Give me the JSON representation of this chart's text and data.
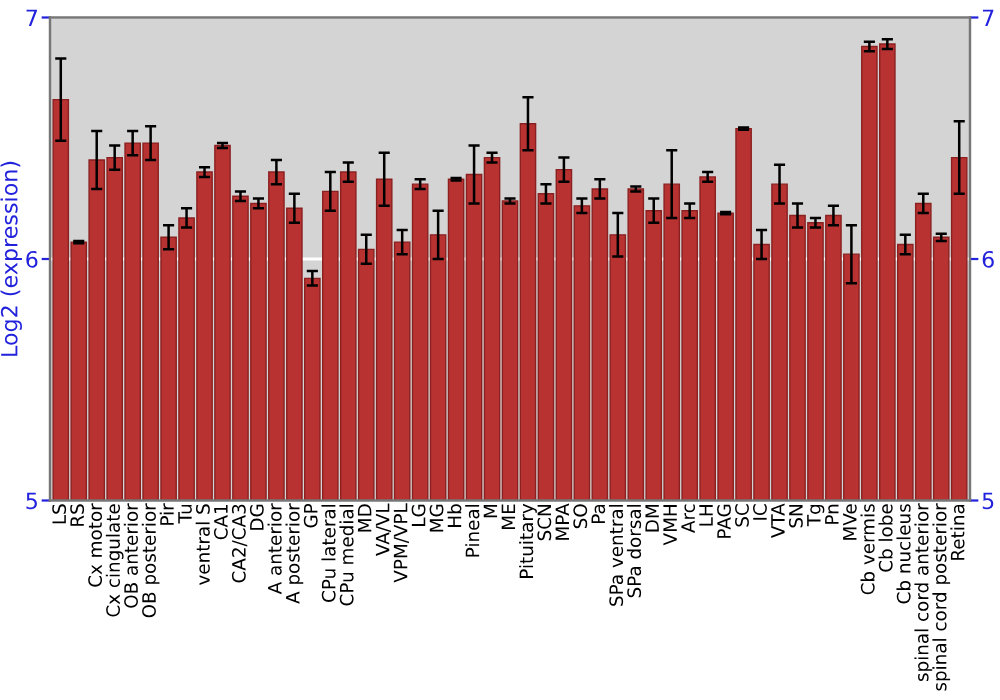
{
  "chart_data": {
    "type": "bar",
    "ylabel": "Log2 (expression)",
    "categories": [
      "LS",
      "RS",
      "Cx motor",
      "Cx cingulate",
      "OB anterior",
      "OB posterior",
      "Pir",
      "Tu",
      "ventral S",
      "CA1",
      "CA2/CA3",
      "DG",
      "A anterior",
      "A posterior",
      "GP",
      "CPu lateral",
      "CPu medial",
      "MD",
      "VA/VL",
      "VPM/VPL",
      "LG",
      "MG",
      "Hb",
      "Pineal",
      "M",
      "ME",
      "Pituitary",
      "SCN",
      "MPA",
      "SO",
      "Pa",
      "SPa ventral",
      "SPa dorsal",
      "DM",
      "VMH",
      "Arc",
      "LH",
      "PAG",
      "SC",
      "IC",
      "VTA",
      "SN",
      "Tg",
      "Pn",
      "MVe",
      "Cb vermis",
      "Cb lobe",
      "Cb nucleus",
      "spinal cord anterior",
      "spinal cord posterior",
      "Retina"
    ],
    "series": [
      {
        "color": "#b83232",
        "values": [
          6.66,
          6.07,
          6.41,
          6.42,
          6.48,
          6.48,
          6.09,
          6.17,
          6.36,
          6.47,
          6.26,
          6.23,
          6.36,
          6.21,
          5.92,
          6.28,
          6.36,
          6.04,
          6.33,
          6.07,
          6.31,
          6.1,
          6.33,
          6.35,
          6.42,
          6.24,
          6.56,
          6.27,
          6.37,
          6.22,
          6.29,
          6.1,
          6.29,
          6.2,
          6.31,
          6.2,
          6.34,
          6.19,
          6.54,
          6.06,
          6.31,
          6.18,
          6.15,
          6.18,
          6.02,
          6.88,
          6.89,
          6.06,
          6.23,
          6.09,
          6.42
        ],
        "errors": [
          0.17,
          0.005,
          0.12,
          0.05,
          0.05,
          0.07,
          0.05,
          0.04,
          0.02,
          0.01,
          0.02,
          0.02,
          0.05,
          0.06,
          0.03,
          0.08,
          0.04,
          0.06,
          0.11,
          0.05,
          0.02,
          0.1,
          0.005,
          0.12,
          0.02,
          0.01,
          0.11,
          0.04,
          0.05,
          0.03,
          0.04,
          0.09,
          0.01,
          0.05,
          0.14,
          0.03,
          0.02,
          0.005,
          0.005,
          0.06,
          0.08,
          0.05,
          0.02,
          0.04,
          0.12,
          0.02,
          0.02,
          0.04,
          0.04,
          0.015,
          0.15
        ]
      }
    ],
    "ylim": [
      5,
      7
    ],
    "yticks": [
      5,
      6,
      7
    ],
    "y2lim": [
      5,
      7
    ],
    "y2ticks": [
      5,
      6,
      7
    ],
    "grid": "y"
  }
}
